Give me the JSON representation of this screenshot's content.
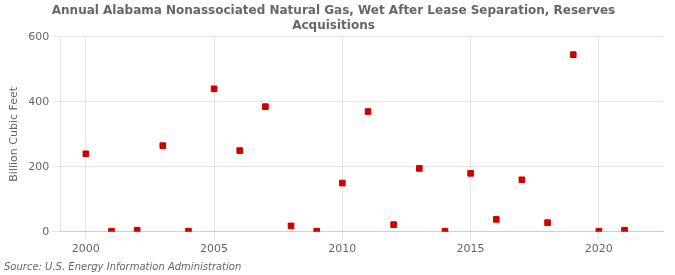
{
  "chart_data": {
    "type": "scatter",
    "title": "Annual Alabama Nonassociated Natural Gas, Wet After Lease Separation, Reserves\nAcquisitions",
    "y_label": "Billion Cubic Feet",
    "source": "Source: U.S. Energy Information Administration",
    "x": [
      2000,
      2001,
      2002,
      2003,
      2004,
      2005,
      2006,
      2007,
      2008,
      2009,
      2010,
      2011,
      2012,
      2013,
      2014,
      2015,
      2016,
      2017,
      2018,
      2019,
      2020,
      2021
    ],
    "values": [
      240,
      2,
      5,
      265,
      2,
      440,
      250,
      385,
      18,
      2,
      150,
      370,
      22,
      195,
      2,
      180,
      38,
      160,
      28,
      545,
      2,
      5
    ],
    "color": "#cc0000",
    "marker": "square",
    "xlim": [
      1999,
      2022.5
    ],
    "ylim": [
      0,
      600
    ],
    "xticks": [
      2000,
      2005,
      2010,
      2015,
      2020
    ],
    "yticks": [
      0,
      200,
      400,
      600
    ],
    "grid": true
  }
}
